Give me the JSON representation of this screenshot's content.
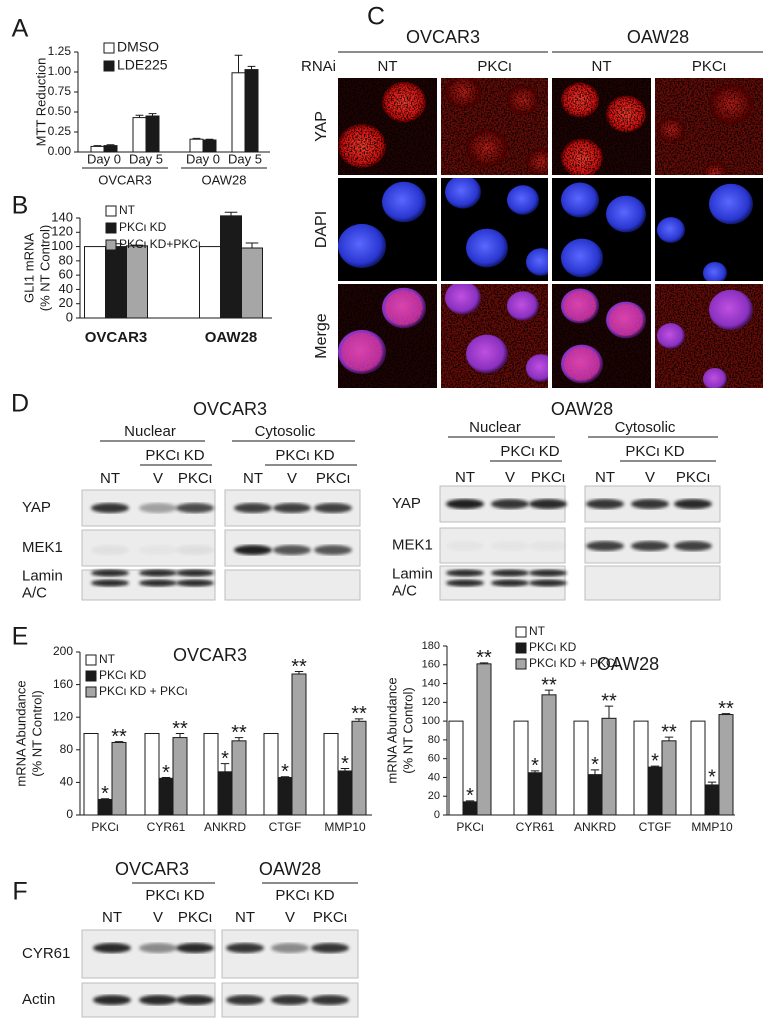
{
  "panel_labels": [
    "A",
    "B",
    "C",
    "D",
    "E",
    "F"
  ],
  "chart_data": [
    {
      "type": "bar",
      "ylabel": [
        "MTT Reduction"
      ],
      "categories": [
        "Day 0",
        "Day 5",
        "Day 0",
        "Day 5"
      ],
      "groups": [
        "OVCAR3",
        "OAW28"
      ],
      "series": [
        {
          "name": "DMSO",
          "color": "#ffffff",
          "values": [
            0.07,
            0.43,
            0.16,
            0.99
          ],
          "errors": [
            0.01,
            0.03,
            0.01,
            0.22
          ]
        },
        {
          "name": "LDE225",
          "color": "#1a1a1a",
          "values": [
            0.08,
            0.45,
            0.15,
            1.03
          ],
          "errors": [
            0.01,
            0.03,
            0.01,
            0.04
          ]
        }
      ],
      "ylim": [
        0,
        1.25
      ],
      "yticks": [
        {
          "value": 0,
          "label": "0.00"
        },
        {
          "value": 0.25,
          "label": "0.25"
        },
        {
          "value": 0.5,
          "label": "0.50"
        },
        {
          "value": 0.75,
          "label": "0.75"
        },
        {
          "value": 1,
          "label": "1.00"
        },
        {
          "value": 1.25,
          "label": "1.25"
        }
      ]
    },
    {
      "type": "bar",
      "ylabel": [
        "GLI1 mRNA",
        "(% NT Control)"
      ],
      "categories": [
        "OVCAR3",
        "OAW28"
      ],
      "series": [
        {
          "name": "NT",
          "color": "#ffffff",
          "values": [
            100,
            100
          ]
        },
        {
          "name": "PKCι KD",
          "color": "#1a1a1a",
          "values": [
            100,
            143
          ],
          "errors": [
            4,
            5
          ]
        },
        {
          "name": "PKCι KD+PKCι",
          "color": "#a6a6a6",
          "values": [
            101,
            98
          ],
          "errors": [
            1,
            7
          ]
        }
      ],
      "ylim": [
        0,
        140
      ],
      "yticks": [
        0,
        20,
        40,
        60,
        80,
        100,
        120,
        140
      ]
    },
    {
      "type": "bar",
      "title": "OVCAR3",
      "ylabel": [
        "mRNA Abundance",
        "(% NT Control)"
      ],
      "categories": [
        "PKCι",
        "CYR61",
        "ANKRD",
        "CTGF",
        "MMP10"
      ],
      "series": [
        {
          "name": "NT",
          "color": "#ffffff",
          "values": [
            100,
            100,
            100,
            100,
            100
          ]
        },
        {
          "name": "PKCι KD",
          "color": "#1a1a1a",
          "values": [
            19,
            45,
            53,
            46,
            54
          ],
          "errors": [
            1,
            1,
            10,
            1,
            3
          ],
          "significance": [
            "*",
            "*",
            "*",
            "*",
            "*"
          ]
        },
        {
          "name": "PKCι KD + PKCι",
          "color": "#a6a6a6",
          "values": [
            89,
            95,
            91,
            173,
            115
          ],
          "errors": [
            1,
            5,
            4,
            3,
            3
          ],
          "significance": [
            "**",
            "**",
            "**",
            "**",
            "**"
          ]
        }
      ],
      "ylim": [
        0,
        200
      ],
      "yticks": [
        0,
        40,
        80,
        120,
        160,
        200
      ]
    },
    {
      "type": "bar",
      "title": "OAW28",
      "ylabel": [
        "mRNA Abundance",
        "(% NT Control)"
      ],
      "categories": [
        "PKCι",
        "CYR61",
        "ANKRD",
        "CTGF",
        "MMP10"
      ],
      "series": [
        {
          "name": "NT",
          "color": "#ffffff",
          "values": [
            100,
            100,
            100,
            100,
            100
          ]
        },
        {
          "name": "PKCι KD",
          "color": "#1a1a1a",
          "values": [
            14,
            45,
            43,
            51,
            32
          ],
          "errors": [
            1,
            2,
            5,
            1,
            3
          ],
          "significance": [
            "*",
            "*",
            "*",
            "*",
            "*"
          ]
        },
        {
          "name": "PKCι KD + PKCι",
          "color": "#a6a6a6",
          "values": [
            161,
            128,
            103,
            79,
            107
          ],
          "errors": [
            1,
            5,
            13,
            4,
            1
          ],
          "significance": [
            "**",
            "**",
            "**",
            "**",
            "**"
          ]
        }
      ],
      "ylim": [
        0,
        180
      ],
      "yticks": [
        0,
        20,
        40,
        60,
        80,
        100,
        120,
        140,
        160,
        180
      ]
    }
  ],
  "microscopy": {
    "cell_lines": [
      "OVCAR3",
      "OAW28"
    ],
    "rnai_label": "RNAi",
    "conditions": [
      "NT",
      "PKCι",
      "NT",
      "PKCι"
    ],
    "stains": [
      "YAP",
      "DAPI",
      "Merge"
    ]
  },
  "blots_D": [
    {
      "title": "OVCAR3",
      "fractions": [
        "Nuclear",
        "Cytosolic"
      ],
      "kd_labels": [
        "PKCι KD",
        "PKCι KD"
      ],
      "lanes": [
        "NT",
        "V",
        "PKCι",
        "NT",
        "V",
        "PKCι"
      ],
      "rows": [
        [
          "YAP"
        ],
        [
          "MEK1"
        ],
        [
          "Lamin",
          "A/C"
        ]
      ]
    },
    {
      "title": "OAW28",
      "fractions": [
        "Nuclear",
        "Cytosolic"
      ],
      "kd_labels": [
        "PKCι KD",
        "PKCι KD"
      ],
      "lanes": [
        "NT",
        "V",
        "PKCι",
        "NT",
        "V",
        "PKCι"
      ],
      "rows": [
        [
          "YAP"
        ],
        [
          "MEK1"
        ],
        [
          "Lamin",
          "A/C"
        ]
      ]
    }
  ],
  "blots_F": {
    "cell_lines": [
      "OVCAR3",
      "OAW28"
    ],
    "kd_labels": [
      "PKCι KD",
      "PKCι KD"
    ],
    "lanes": [
      "NT",
      "V",
      "PKCι",
      "NT",
      "V",
      "PKCι"
    ],
    "rows": [
      [
        "CYR61"
      ],
      [
        "Actin"
      ]
    ]
  }
}
